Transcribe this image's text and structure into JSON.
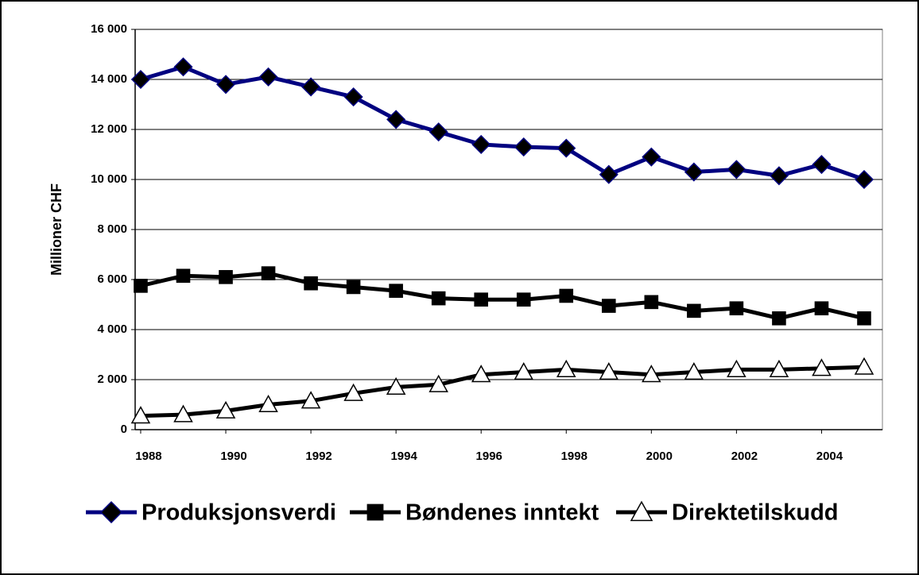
{
  "chart_data": {
    "type": "line",
    "y_label": "Millioner CHF",
    "x": [
      1988,
      1989,
      1990,
      1991,
      1992,
      1993,
      1994,
      1995,
      1996,
      1997,
      1998,
      1999,
      2000,
      2001,
      2002,
      2003,
      2004,
      2005
    ],
    "xlim": [
      1987.87,
      2005.43
    ],
    "xticks": [
      1988,
      1990,
      1992,
      1994,
      1996,
      1998,
      2000,
      2002,
      2004
    ],
    "ylim": [
      0,
      16000
    ],
    "yticks": [
      {
        "value": 0,
        "label": "0"
      },
      {
        "value": 2000,
        "label": "2 000"
      },
      {
        "value": 4000,
        "label": "4 000"
      },
      {
        "value": 6000,
        "label": "6 000"
      },
      {
        "value": 8000,
        "label": "8 000"
      },
      {
        "value": 10000,
        "label": "10 000"
      },
      {
        "value": 12000,
        "label": "12 000"
      },
      {
        "value": 14000,
        "label": "14 000"
      },
      {
        "value": 16000,
        "label": "16 000"
      }
    ],
    "grid": true,
    "legend": "bottom",
    "series": [
      {
        "name": "Produksjonsverdi",
        "color": "#000080",
        "marker": "diamond",
        "values": [
          14000,
          14500,
          13800,
          14100,
          13700,
          13300,
          12400,
          11900,
          11400,
          11300,
          11250,
          10200,
          10900,
          10300,
          10400,
          10150,
          10600,
          10000
        ]
      },
      {
        "name": "Bøndenes inntekt",
        "color": "#000000",
        "marker": "square",
        "values": [
          5750,
          6150,
          6100,
          6250,
          5850,
          5700,
          5550,
          5250,
          5200,
          5200,
          5350,
          4950,
          5100,
          4750,
          4850,
          4450,
          4850,
          4450
        ]
      },
      {
        "name": "Direktetilskudd",
        "color": "#000000",
        "marker": "triangle",
        "values": [
          550,
          600,
          750,
          1000,
          1150,
          1450,
          1700,
          1800,
          2200,
          2300,
          2400,
          2300,
          2200,
          2300,
          2400,
          2400,
          2450,
          2500
        ]
      }
    ]
  }
}
